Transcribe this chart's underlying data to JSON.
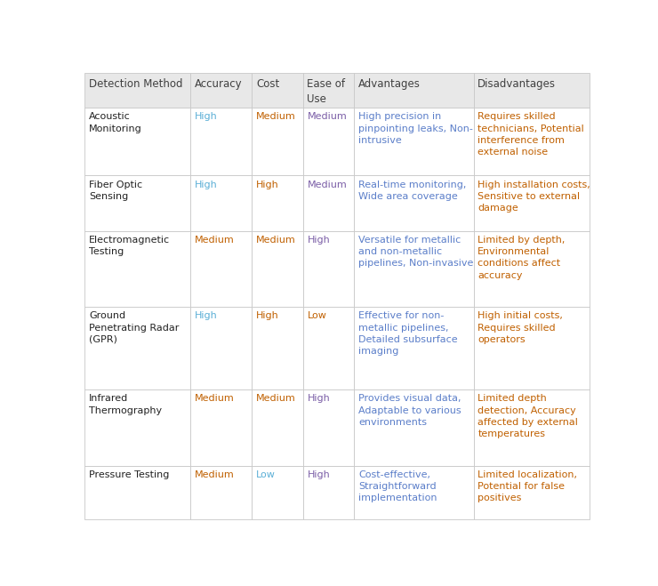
{
  "columns": [
    "Detection Method",
    "Accuracy",
    "Cost",
    "Ease of\nUse",
    "Advantages",
    "Disadvantages"
  ],
  "header_bg": "#e8e8e8",
  "row_bg_even": "#ffffff",
  "row_bg_odd": "#ffffff",
  "border_color": "#c8c8c8",
  "header_text_color": "#404040",
  "method_text_color": "#222222",
  "adv_text_color": "#5B7EC9",
  "disadv_text_color": "#C06000",
  "accuracy_high_color": "#5BAFD6",
  "accuracy_medium_color": "#C06000",
  "cost_high_color": "#C06000",
  "cost_medium_color": "#C06000",
  "cost_low_color": "#5BAFD6",
  "ease_high_color": "#7B5EA7",
  "ease_medium_color": "#7B5EA7",
  "ease_low_color": "#C06000",
  "rows": [
    {
      "method": "Acoustic\nMonitoring",
      "accuracy": "High",
      "cost": "Medium",
      "ease": "Medium",
      "advantages": "High precision in\npinpointing leaks, Non-\nintrusive",
      "disadvantages": "Requires skilled\ntechnicians, Potential\ninterference from\nexternal noise"
    },
    {
      "method": "Fiber Optic\nSensing",
      "accuracy": "High",
      "cost": "High",
      "ease": "Medium",
      "advantages": "Real-time monitoring,\nWide area coverage",
      "disadvantages": "High installation costs,\nSensitive to external\ndamage"
    },
    {
      "method": "Electromagnetic\nTesting",
      "accuracy": "Medium",
      "cost": "Medium",
      "ease": "High",
      "advantages": "Versatile for metallic\nand non-metallic\npipelines, Non-invasive",
      "disadvantages": "Limited by depth,\nEnvironmental\nconditions affect\naccuracy"
    },
    {
      "method": "Ground\nPenetrating Radar\n(GPR)",
      "accuracy": "High",
      "cost": "High",
      "ease": "Low",
      "advantages": "Effective for non-\nmetallic pipelines,\nDetailed subsurface\nimaging",
      "disadvantages": "High initial costs,\nRequires skilled\noperators"
    },
    {
      "method": "Infrared\nThermography",
      "accuracy": "Medium",
      "cost": "Medium",
      "ease": "High",
      "advantages": "Provides visual data,\nAdaptable to various\nenvironments",
      "disadvantages": "Limited depth\ndetection, Accuracy\naffected by external\ntemperatures"
    },
    {
      "method": "Pressure Testing",
      "accuracy": "Medium",
      "cost": "Low",
      "ease": "High",
      "advantages": "Cost-effective,\nStraightforward\nimplementation",
      "disadvantages": "Limited localization,\nPotential for false\npositives"
    }
  ],
  "figsize": [
    7.4,
    6.59
  ],
  "dpi": 100,
  "font_size": 8.0,
  "header_font_size": 8.5
}
